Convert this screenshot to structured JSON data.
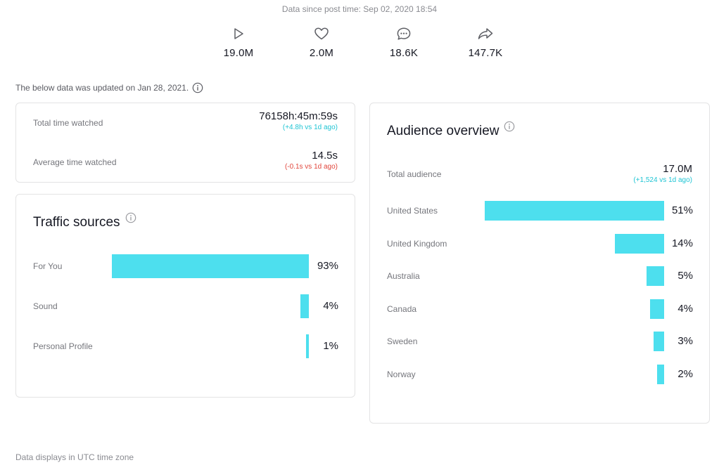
{
  "header": {
    "since": "Data since post time: Sep 02, 2020 18:54"
  },
  "stats": [
    {
      "icon": "play-icon",
      "value": "19.0M"
    },
    {
      "icon": "heart-icon",
      "value": "2.0M"
    },
    {
      "icon": "comment-icon",
      "value": "18.6K"
    },
    {
      "icon": "share-icon",
      "value": "147.7K"
    }
  ],
  "updated_note": "The below data was updated on Jan 28, 2021.",
  "watch": {
    "total_label": "Total time watched",
    "total_value": "76158h:45m:59s",
    "total_delta": "(+4.8h vs 1d ago)",
    "average_label": "Average time watched",
    "average_value": "14.5s",
    "average_delta": "(-0.1s vs 1d ago)"
  },
  "traffic": {
    "title": "Traffic sources",
    "items": [
      {
        "label": "For You",
        "pct": "93%",
        "value": 93
      },
      {
        "label": "Sound",
        "pct": "4%",
        "value": 4
      },
      {
        "label": "Personal Profile",
        "pct": "1%",
        "value": 1
      }
    ]
  },
  "audience": {
    "title": "Audience overview",
    "total_label": "Total audience",
    "total_value": "17.0M",
    "total_delta": "(+1,524 vs 1d ago)",
    "items": [
      {
        "label": "United States",
        "pct": "51%",
        "value": 51
      },
      {
        "label": "United Kingdom",
        "pct": "14%",
        "value": 14
      },
      {
        "label": "Australia",
        "pct": "5%",
        "value": 5
      },
      {
        "label": "Canada",
        "pct": "4%",
        "value": 4
      },
      {
        "label": "Sweden",
        "pct": "3%",
        "value": 3
      },
      {
        "label": "Norway",
        "pct": "2%",
        "value": 2
      }
    ]
  },
  "footer": "Data displays in UTC time zone",
  "colors": {
    "bar": "#4ddfee",
    "positive": "#20c5d4",
    "negative": "#e1463c"
  }
}
